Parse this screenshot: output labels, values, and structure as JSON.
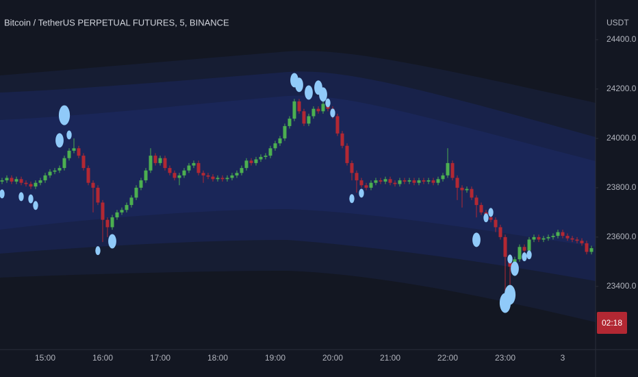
{
  "chart_data": {
    "type": "candlestick",
    "title": "Bitcoin / TetherUS PERPETUAL FUTURES, 5, BINANCE",
    "currency": "USDT",
    "countdown": "02:18",
    "up_color": "#4caf50",
    "down_color": "#b22833",
    "bubble_color": "#90caf9",
    "categories": [
      null,
      null,
      null,
      null,
      null,
      null,
      null,
      null,
      null,
      "15:00",
      null,
      null,
      null,
      null,
      null,
      null,
      null,
      null,
      null,
      null,
      null,
      "16:00",
      null,
      null,
      null,
      null,
      null,
      null,
      null,
      null,
      null,
      null,
      null,
      "17:00",
      null,
      null,
      null,
      null,
      null,
      null,
      null,
      null,
      null,
      null,
      null,
      "18:00",
      null,
      null,
      null,
      null,
      null,
      null,
      null,
      null,
      null,
      null,
      null,
      "19:00",
      null,
      null,
      null,
      null,
      null,
      null,
      null,
      null,
      null,
      null,
      null,
      "20:00",
      null,
      null,
      null,
      null,
      null,
      null,
      null,
      null,
      null,
      null,
      null,
      "21:00",
      null,
      null,
      null,
      null,
      null,
      null,
      null,
      null,
      null,
      null,
      null,
      "22:00",
      null,
      null,
      null,
      null,
      null,
      null,
      null,
      null,
      null,
      null,
      null,
      "23:00",
      null,
      null,
      null,
      null,
      null,
      null,
      null,
      null,
      null,
      null,
      null,
      "3",
      null,
      null,
      null,
      null,
      null,
      null
    ],
    "open": [
      23825,
      23830,
      23840,
      23825,
      23835,
      23820,
      23815,
      23805,
      23820,
      23830,
      23850,
      23865,
      23870,
      23880,
      23920,
      23950,
      23960,
      23930,
      23880,
      23820,
      23800,
      23740,
      23670,
      23640,
      23680,
      23700,
      23710,
      23730,
      23760,
      23800,
      23830,
      23870,
      23930,
      23900,
      23920,
      23880,
      23860,
      23840,
      23850,
      23870,
      23890,
      23900,
      23860,
      23850,
      23845,
      23835,
      23840,
      23835,
      23840,
      23850,
      23860,
      23880,
      23910,
      23900,
      23915,
      23925,
      23930,
      23960,
      23980,
      24000,
      24050,
      24080,
      24150,
      24110,
      24060,
      24090,
      24120,
      24110,
      24140,
      24120,
      24090,
      24020,
      23970,
      23900,
      23860,
      23830,
      23810,
      23800,
      23820,
      23830,
      23825,
      23835,
      23820,
      23815,
      23830,
      23825,
      23830,
      23820,
      23830,
      23825,
      23830,
      23820,
      23835,
      23850,
      23900,
      23840,
      23800,
      23790,
      23795,
      23760,
      23730,
      23700,
      23680,
      23670,
      23640,
      23600,
      23520,
      23480,
      23510,
      23560,
      23545,
      23590,
      23600,
      23590,
      23595,
      23600,
      23605,
      23620,
      23605,
      23595,
      23590,
      23585,
      23575,
      23540
    ],
    "high": [
      23840,
      23850,
      23850,
      23845,
      23845,
      23830,
      23825,
      23830,
      23840,
      23860,
      23875,
      23880,
      23890,
      23930,
      23960,
      24000,
      23970,
      23940,
      23890,
      23830,
      23810,
      23750,
      23680,
      23690,
      23710,
      23720,
      23740,
      23770,
      23810,
      23840,
      23880,
      23960,
      23940,
      23930,
      23930,
      23890,
      23870,
      23860,
      23880,
      23900,
      23910,
      23910,
      23870,
      23860,
      23855,
      23850,
      23850,
      23850,
      23860,
      23870,
      23890,
      23920,
      23920,
      23925,
      23935,
      23940,
      23970,
      23990,
      24010,
      24060,
      24090,
      24160,
      24160,
      24120,
      24100,
      24130,
      24130,
      24150,
      24150,
      24130,
      24100,
      24030,
      23980,
      23910,
      23870,
      23840,
      23820,
      23830,
      23840,
      23840,
      23845,
      23845,
      23830,
      23840,
      23840,
      23840,
      23840,
      23840,
      23840,
      23840,
      23840,
      23845,
      23860,
      23960,
      23910,
      23850,
      23810,
      23805,
      23805,
      23770,
      23740,
      23710,
      23690,
      23680,
      23650,
      23610,
      23530,
      23520,
      23570,
      23570,
      23600,
      23610,
      23610,
      23605,
      23610,
      23615,
      23630,
      23630,
      23615,
      23605,
      23600,
      23595,
      23585,
      23565
    ],
    "low": [
      23815,
      23820,
      23815,
      23815,
      23810,
      23805,
      23795,
      23795,
      23810,
      23820,
      23840,
      23855,
      23860,
      23870,
      23910,
      23940,
      23920,
      23870,
      23810,
      23700,
      23730,
      23580,
      23600,
      23630,
      23670,
      23690,
      23700,
      23720,
      23750,
      23790,
      23820,
      23860,
      23890,
      23890,
      23870,
      23850,
      23830,
      23810,
      23840,
      23860,
      23880,
      23850,
      23820,
      23835,
      23825,
      23825,
      23825,
      23825,
      23830,
      23840,
      23850,
      23870,
      23890,
      23890,
      23905,
      23915,
      23920,
      23950,
      23970,
      23990,
      24040,
      24070,
      24100,
      24050,
      24050,
      24080,
      24100,
      24100,
      24110,
      24080,
      24010,
      23960,
      23890,
      23830,
      23780,
      23800,
      23790,
      23790,
      23810,
      23815,
      23815,
      23810,
      23805,
      23805,
      23815,
      23815,
      23810,
      23810,
      23815,
      23815,
      23810,
      23810,
      23825,
      23840,
      23830,
      23750,
      23720,
      23780,
      23750,
      23680,
      23690,
      23670,
      23660,
      23620,
      23590,
      23380,
      23400,
      23470,
      23500,
      23535,
      23535,
      23580,
      23580,
      23580,
      23585,
      23590,
      23595,
      23595,
      23585,
      23580,
      23575,
      23565,
      23530,
      23530
    ],
    "close": [
      23830,
      23840,
      23825,
      23835,
      23820,
      23815,
      23805,
      23820,
      23830,
      23850,
      23865,
      23870,
      23880,
      23920,
      23950,
      23960,
      23930,
      23880,
      23820,
      23800,
      23740,
      23670,
      23640,
      23680,
      23700,
      23710,
      23730,
      23760,
      23800,
      23830,
      23870,
      23930,
      23900,
      23920,
      23880,
      23860,
      23840,
      23850,
      23870,
      23890,
      23900,
      23860,
      23850,
      23845,
      23835,
      23840,
      23835,
      23840,
      23850,
      23860,
      23880,
      23910,
      23900,
      23915,
      23925,
      23930,
      23960,
      23980,
      24000,
      24050,
      24080,
      24150,
      24110,
      24060,
      24090,
      24120,
      24110,
      24140,
      24120,
      24090,
      24020,
      23970,
      23900,
      23860,
      23830,
      23810,
      23800,
      23820,
      23830,
      23825,
      23835,
      23820,
      23815,
      23830,
      23825,
      23830,
      23820,
      23830,
      23825,
      23830,
      23820,
      23835,
      23850,
      23900,
      23840,
      23800,
      23790,
      23795,
      23760,
      23730,
      23700,
      23680,
      23670,
      23640,
      23600,
      23520,
      23480,
      23510,
      23560,
      23545,
      23590,
      23600,
      23590,
      23595,
      23600,
      23605,
      23620,
      23605,
      23595,
      23590,
      23585,
      23575,
      23540,
      23555
    ],
    "bubbles": {
      "x": [
        13,
        12,
        14,
        0,
        4,
        6,
        7,
        20,
        23,
        61,
        62,
        64,
        66,
        67,
        68,
        69,
        73,
        75,
        99,
        101,
        102,
        106,
        107,
        109,
        110,
        105,
        106
      ],
      "values": [
        24094,
        23992,
        24014,
        23775,
        23764,
        23755,
        23728,
        23545,
        23583,
        24236,
        24217,
        24186,
        24206,
        24178,
        24144,
        24103,
        23756,
        23778,
        23589,
        23678,
        23700,
        23511,
        23472,
        23520,
        23528,
        23333,
        23366
      ],
      "sizes": [
        3,
        2,
        1,
        1,
        1,
        1,
        1,
        1,
        2,
        2,
        2,
        2,
        2,
        2,
        1,
        1,
        1,
        1,
        2,
        1,
        1,
        1,
        2,
        1,
        1,
        3,
        3
      ]
    },
    "ylim": [
      23144,
      24561
    ],
    "yticks": [
      {
        "value": 24400,
        "label": "24400.0"
      },
      {
        "value": 24200,
        "label": "24200.0"
      },
      {
        "value": 24000,
        "label": "24000.0"
      },
      {
        "value": 23800,
        "label": "23800.0"
      },
      {
        "value": 23600,
        "label": "23600.0"
      },
      {
        "value": 23400,
        "label": "23400.0"
      }
    ]
  }
}
